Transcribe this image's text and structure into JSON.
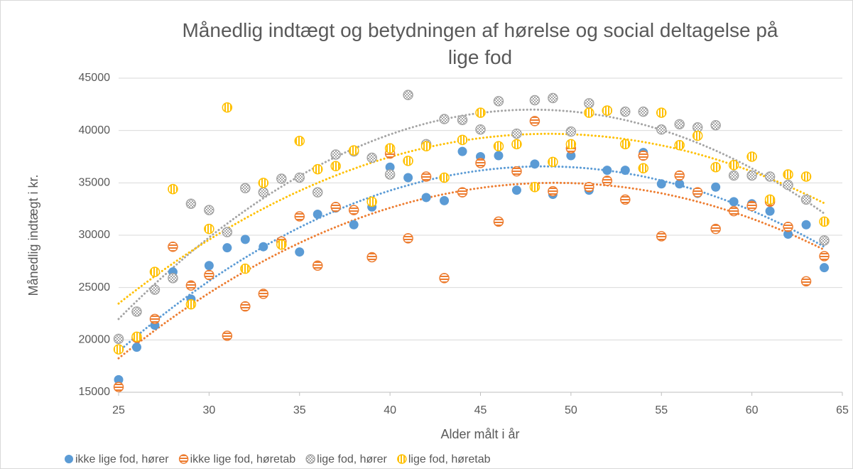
{
  "chart_data": {
    "type": "scatter",
    "title": "Månedlig indtægt og betydningen af hørelse og social deltagelse på lige fod",
    "x_label": "Alder målt i år",
    "y_label": "Månedlig indtægt i kr.",
    "x": [
      25,
      26,
      27,
      28,
      29,
      30,
      31,
      32,
      33,
      34,
      35,
      36,
      37,
      38,
      39,
      40,
      41,
      42,
      43,
      44,
      45,
      46,
      47,
      48,
      49,
      50,
      51,
      52,
      53,
      54,
      55,
      56,
      57,
      58,
      59,
      60,
      61,
      62,
      63,
      64
    ],
    "series": [
      {
        "name": "ikke lige fod, hører",
        "color": "#5b9bd5",
        "values": [
          16200,
          19300,
          21400,
          26500,
          23900,
          27100,
          28800,
          29600,
          28900,
          29400,
          28400,
          32000,
          32600,
          31000,
          32700,
          36500,
          35500,
          33600,
          33300,
          38000,
          37500,
          37600,
          34300,
          36800,
          33900,
          37600,
          34300,
          36200,
          36200,
          37900,
          34900,
          34900,
          34000,
          34600,
          33200,
          33000,
          32300,
          30100,
          31000,
          26900
        ]
      },
      {
        "name": "ikke lige fod, høretab",
        "color": "#ed7d31",
        "values": [
          15500,
          20200,
          22000,
          28900,
          25200,
          26200,
          20400,
          23200,
          24400,
          29400,
          31800,
          27100,
          32700,
          32400,
          27900,
          37800,
          29700,
          35600,
          25900,
          34100,
          36900,
          31300,
          36100,
          40900,
          34200,
          38300,
          34600,
          35200,
          33400,
          37600,
          29900,
          35700,
          34100,
          30600,
          32300,
          32800,
          33200,
          30800,
          25600,
          28000
        ]
      },
      {
        "name": "lige fod, hører",
        "color": "#a5a5a5",
        "values": [
          20100,
          22700,
          24800,
          25900,
          33000,
          32400,
          30300,
          34500,
          34100,
          35400,
          35500,
          34100,
          37700,
          38000,
          37400,
          35800,
          43400,
          38700,
          41100,
          41000,
          40100,
          42800,
          39700,
          42900,
          43100,
          39900,
          42600,
          41900,
          41800,
          41800,
          40100,
          40600,
          40300,
          40500,
          35700,
          35700,
          35600,
          34800,
          33400,
          29500
        ]
      },
      {
        "name": "lige fod, høretab",
        "color": "#ffc000",
        "values": [
          19100,
          20300,
          26500,
          34400,
          23400,
          30600,
          42200,
          26800,
          35000,
          29100,
          39000,
          36300,
          36600,
          38100,
          33200,
          38300,
          37100,
          38500,
          35500,
          39100,
          41700,
          38500,
          38700,
          34600,
          37000,
          38700,
          41700,
          41900,
          38700,
          36400,
          41700,
          38600,
          39500,
          36500,
          36700,
          37500,
          33400,
          35800,
          35600,
          31300
        ]
      }
    ],
    "xlim": [
      25,
      65
    ],
    "xticks": [
      25,
      30,
      35,
      40,
      45,
      50,
      55,
      60,
      65
    ],
    "ylim": [
      15000,
      45000
    ],
    "yticks": [
      15000,
      20000,
      25000,
      30000,
      35000,
      40000,
      45000
    ],
    "grid": true,
    "legend": "bottom"
  }
}
